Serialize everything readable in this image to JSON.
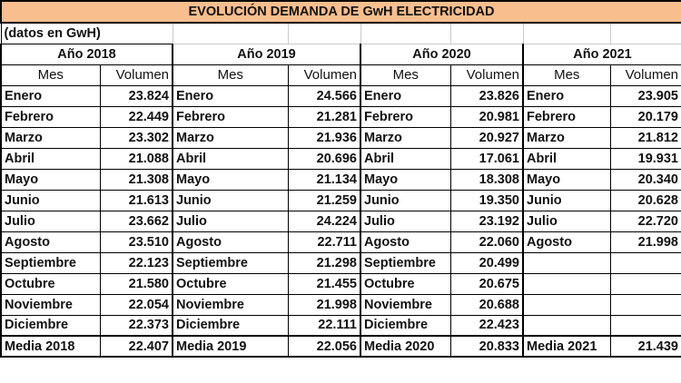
{
  "title": "EVOLUCIÓN DEMANDA DE GwH ELECTRICIDAD",
  "note": "(datos en GwH)",
  "col_headers": {
    "mes": "Mes",
    "volumen": "Volumen"
  },
  "years": [
    {
      "label": "Año 2018",
      "rows": [
        [
          "Enero",
          "23.824"
        ],
        [
          "Febrero",
          "22.449"
        ],
        [
          "Marzo",
          "23.302"
        ],
        [
          "Abril",
          "21.088"
        ],
        [
          "Mayo",
          "21.308"
        ],
        [
          "Junio",
          "21.613"
        ],
        [
          "Julio",
          "23.662"
        ],
        [
          "Agosto",
          "23.510"
        ],
        [
          "Septiembre",
          "22.123"
        ],
        [
          "Octubre",
          "21.580"
        ],
        [
          "Noviembre",
          "22.054"
        ],
        [
          "Diciembre",
          "22.373"
        ]
      ],
      "media_label": "Media 2018",
      "media_value": "22.407"
    },
    {
      "label": "Año 2019",
      "rows": [
        [
          "Enero",
          "24.566"
        ],
        [
          "Febrero",
          "21.281"
        ],
        [
          "Marzo",
          "21.936"
        ],
        [
          "Abril",
          "20.696"
        ],
        [
          "Mayo",
          "21.134"
        ],
        [
          "Junio",
          "21.259"
        ],
        [
          "Julio",
          "24.224"
        ],
        [
          "Agosto",
          "22.711"
        ],
        [
          "Septiembre",
          "21.298"
        ],
        [
          "Octubre",
          "21.455"
        ],
        [
          "Noviembre",
          "21.998"
        ],
        [
          "Diciembre",
          "22.111"
        ]
      ],
      "media_label": "Media 2019",
      "media_value": "22.056"
    },
    {
      "label": "Año 2020",
      "rows": [
        [
          "Enero",
          "23.826"
        ],
        [
          "Febrero",
          "20.981"
        ],
        [
          "Marzo",
          "20.927"
        ],
        [
          "Abril",
          "17.061"
        ],
        [
          "Mayo",
          "18.308"
        ],
        [
          "Junio",
          "19.350"
        ],
        [
          "Julio",
          "23.192"
        ],
        [
          "Agosto",
          "22.060"
        ],
        [
          "Septiembre",
          "20.499"
        ],
        [
          "Octubre",
          "20.675"
        ],
        [
          "Noviembre",
          "20.688"
        ],
        [
          "Diciembre",
          "22.423"
        ]
      ],
      "media_label": "Media 2020",
      "media_value": "20.833"
    },
    {
      "label": "Año 2021",
      "rows": [
        [
          "Enero",
          "23.905"
        ],
        [
          "Febrero",
          "20.179"
        ],
        [
          "Marzo",
          "21.812"
        ],
        [
          "Abril",
          "19.931"
        ],
        [
          "Mayo",
          "20.340"
        ],
        [
          "Junio",
          "20.628"
        ],
        [
          "Julio",
          "22.720"
        ],
        [
          "Agosto",
          "21.998"
        ],
        [
          "",
          ""
        ],
        [
          "",
          ""
        ],
        [
          "",
          ""
        ],
        [
          "",
          ""
        ]
      ],
      "media_label": "Media 2021",
      "media_value": "21.439"
    }
  ],
  "colors": {
    "title_fill": "#f9be8e"
  }
}
